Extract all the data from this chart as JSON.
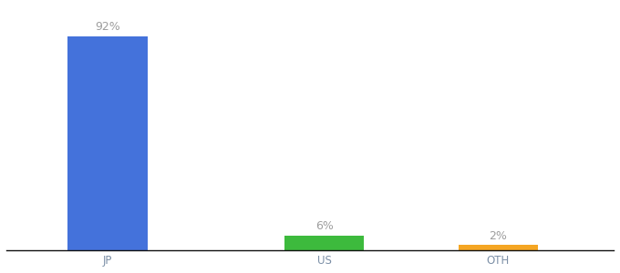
{
  "categories": [
    "JP",
    "US",
    "OTH"
  ],
  "values": [
    92,
    6,
    2
  ],
  "bar_colors": [
    "#4472db",
    "#3dba3d",
    "#f5a623"
  ],
  "label_texts": [
    "92%",
    "6%",
    "2%"
  ],
  "background_color": "#ffffff",
  "label_color": "#9e9e9e",
  "label_fontsize": 9,
  "tick_fontsize": 8.5,
  "tick_color": "#7b8fa6",
  "ylim": [
    0,
    105
  ],
  "bar_width": 0.55,
  "x_positions": [
    0.5,
    2.0,
    3.2
  ],
  "xlim": [
    -0.2,
    4.0
  ]
}
